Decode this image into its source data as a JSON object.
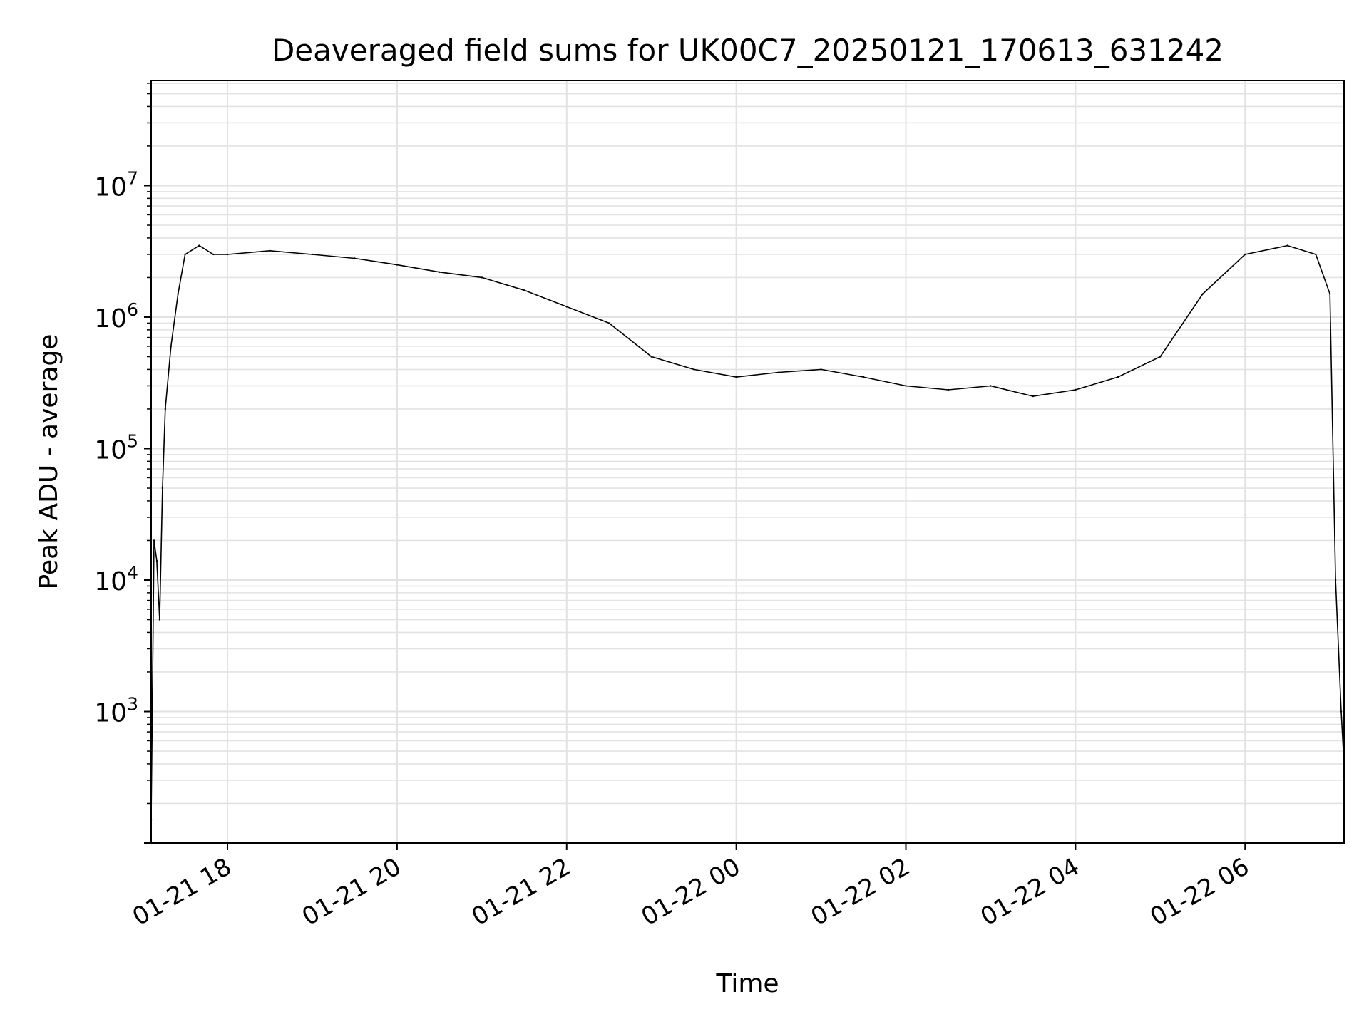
{
  "chart_data": {
    "type": "line",
    "title": "Deaveraged field sums for UK00C7_20250121_170613_631242",
    "xlabel": "Time",
    "ylabel": "Peak ADU - average",
    "yscale": "log",
    "xlim": [
      "2025-01-21 17:06",
      "2025-01-22 07:10"
    ],
    "ylim": [
      100,
      63000000
    ],
    "grid": true,
    "x_ticks": [
      {
        "value": "2025-01-21 18:00",
        "label": "01-21 18"
      },
      {
        "value": "2025-01-21 20:00",
        "label": "01-21 20"
      },
      {
        "value": "2025-01-21 22:00",
        "label": "01-21 22"
      },
      {
        "value": "2025-01-22 00:00",
        "label": "01-22 00"
      },
      {
        "value": "2025-01-22 02:00",
        "label": "01-22 02"
      },
      {
        "value": "2025-01-22 04:00",
        "label": "01-22 04"
      },
      {
        "value": "2025-01-22 06:00",
        "label": "01-22 06"
      }
    ],
    "y_ticks": [
      {
        "value": 1000,
        "base": "10",
        "exp": "3"
      },
      {
        "value": 10000,
        "base": "10",
        "exp": "4"
      },
      {
        "value": 100000,
        "base": "10",
        "exp": "5"
      },
      {
        "value": 1000000,
        "base": "10",
        "exp": "6"
      },
      {
        "value": 10000000,
        "base": "10",
        "exp": "7"
      }
    ],
    "series": [
      {
        "color": "#000000",
        "x": [
          "2025-01-21 17:06",
          "2025-01-21 17:08",
          "2025-01-21 17:10",
          "2025-01-21 17:12",
          "2025-01-21 17:14",
          "2025-01-21 17:16",
          "2025-01-21 17:20",
          "2025-01-21 17:25",
          "2025-01-21 17:30",
          "2025-01-21 17:40",
          "2025-01-21 17:50",
          "2025-01-21 18:00",
          "2025-01-21 18:30",
          "2025-01-21 19:00",
          "2025-01-21 19:30",
          "2025-01-21 20:00",
          "2025-01-21 20:30",
          "2025-01-21 21:00",
          "2025-01-21 21:30",
          "2025-01-21 22:00",
          "2025-01-21 22:30",
          "2025-01-21 23:00",
          "2025-01-21 23:30",
          "2025-01-22 00:00",
          "2025-01-22 00:30",
          "2025-01-22 01:00",
          "2025-01-22 01:30",
          "2025-01-22 02:00",
          "2025-01-22 02:30",
          "2025-01-22 03:00",
          "2025-01-22 03:30",
          "2025-01-22 04:00",
          "2025-01-22 04:30",
          "2025-01-22 05:00",
          "2025-01-22 05:30",
          "2025-01-22 06:00",
          "2025-01-22 06:30",
          "2025-01-22 06:50",
          "2025-01-22 07:00",
          "2025-01-22 07:04",
          "2025-01-22 07:08",
          "2025-01-22 07:10"
        ],
        "y": [
          150,
          20000,
          14000,
          5000,
          50000,
          200000,
          600000,
          1500000,
          3000000,
          3500000,
          3000000,
          3000000,
          3200000,
          3000000,
          2800000,
          2500000,
          2200000,
          2000000,
          1600000,
          1200000,
          900000,
          500000,
          400000,
          350000,
          380000,
          400000,
          350000,
          300000,
          280000,
          300000,
          250000,
          280000,
          350000,
          500000,
          1500000,
          3000000,
          3500000,
          3000000,
          1500000,
          10000,
          1000,
          400
        ]
      }
    ]
  }
}
